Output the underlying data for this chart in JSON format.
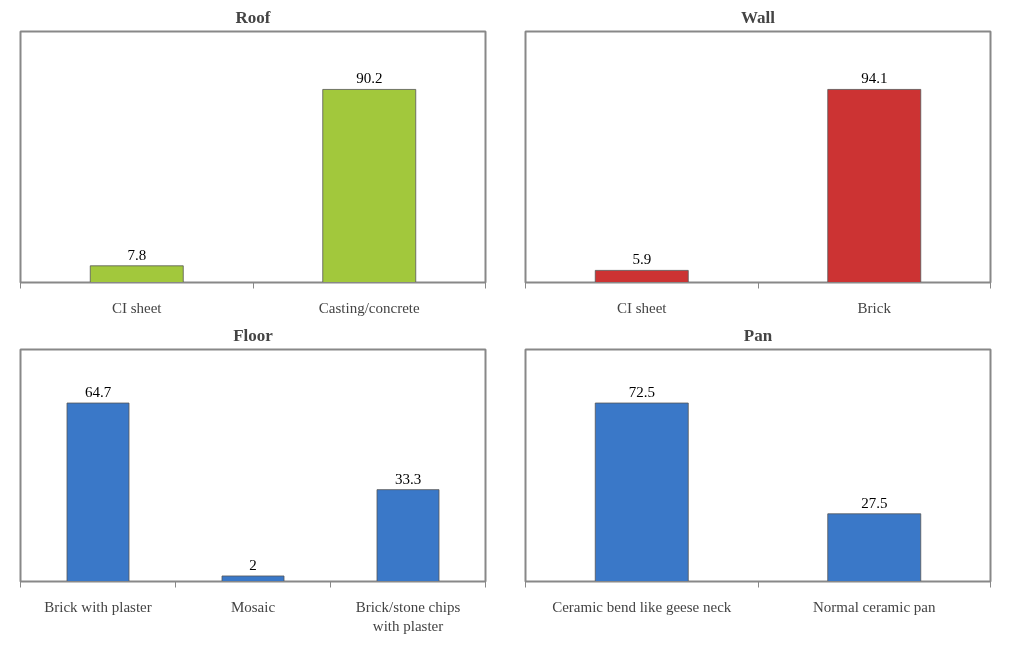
{
  "chart_data": [
    {
      "type": "bar",
      "title": "Roof",
      "categories": [
        "CI sheet",
        "Casting/concrete"
      ],
      "values": [
        7.8,
        90.2
      ],
      "color": "#a2c83c",
      "data_labels": true,
      "grid": false,
      "tick_labels": "x"
    },
    {
      "type": "bar",
      "title": "Wall",
      "categories": [
        "CI sheet",
        "Brick"
      ],
      "values": [
        5.9,
        94.1
      ],
      "color": "#cc3333",
      "data_labels": true,
      "grid": false,
      "tick_labels": "x"
    },
    {
      "type": "bar",
      "title": "Floor",
      "categories": [
        "Brick with plaster",
        "Mosaic",
        "Brick/stone chips with plaster"
      ],
      "values": [
        64.7,
        2,
        33.3
      ],
      "color": "#3a78c8",
      "data_labels": true,
      "grid": false,
      "tick_labels": "x"
    },
    {
      "type": "bar",
      "title": "Pan",
      "categories": [
        "Ceramic bend like geese neck",
        "Normal ceramic pan"
      ],
      "values": [
        72.5,
        27.5
      ],
      "color": "#3a78c8",
      "data_labels": true,
      "grid": false,
      "tick_labels": "x"
    }
  ]
}
